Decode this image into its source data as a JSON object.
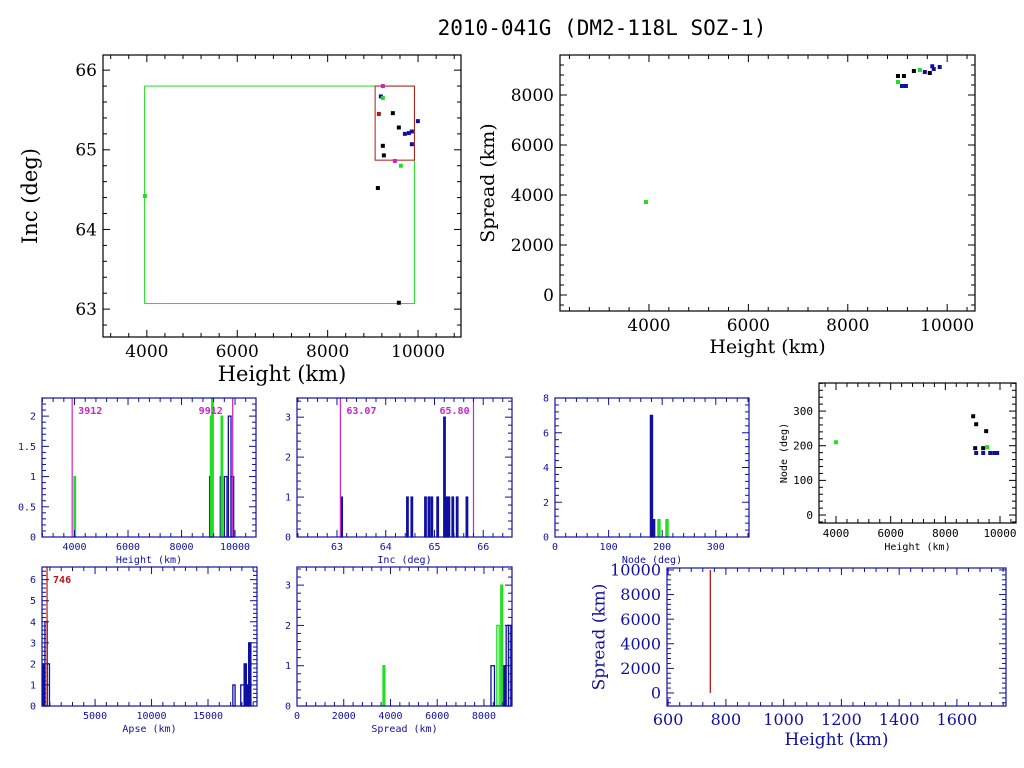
{
  "title": "2010-041G (DM2-118L SOZ-1)",
  "colors": {
    "black": "#000000",
    "blue": "#1010a0",
    "green": "#22dd22",
    "red": "#b01818",
    "magenta": "#cc22cc"
  },
  "chart_data": [
    {
      "id": "inc-height",
      "type": "scatter",
      "xlabel": "Height (km)",
      "ylabel": "Inc (deg)",
      "xlim": [
        3030,
        10950
      ],
      "ylim": [
        62.65,
        66.19
      ],
      "xticks": [
        4000,
        6000,
        8000,
        10000
      ],
      "yticks": [
        63,
        64,
        65,
        66
      ],
      "axis_color": "black",
      "rects": [
        {
          "x": [
            3950,
            9920
          ],
          "y": [
            63.07,
            65.8
          ],
          "color": "green"
        },
        {
          "x": [
            9050,
            9920
          ],
          "y": [
            64.87,
            65.8
          ],
          "color": "red"
        }
      ],
      "points": [
        [
          9221,
          65.8,
          "magenta"
        ],
        [
          9177,
          65.67,
          "blue"
        ],
        [
          9221,
          65.65,
          "green"
        ],
        [
          9133,
          65.45,
          "red"
        ],
        [
          9442,
          65.46,
          "black"
        ],
        [
          9575,
          65.28,
          "black"
        ],
        [
          9708,
          65.2,
          "blue"
        ],
        [
          9796,
          65.21,
          "blue"
        ],
        [
          9863,
          65.23,
          "blue"
        ],
        [
          9863,
          65.07,
          "blue"
        ],
        [
          9996,
          65.36,
          "blue"
        ],
        [
          9221,
          65.05,
          "black"
        ],
        [
          9243,
          64.93,
          "black"
        ],
        [
          9487,
          64.86,
          "magenta"
        ],
        [
          9619,
          64.8,
          "green"
        ],
        [
          9111,
          64.52,
          "black"
        ],
        [
          9575,
          63.08,
          "black"
        ],
        [
          3956,
          64.42,
          "green"
        ]
      ]
    },
    {
      "id": "spread-height",
      "type": "scatter",
      "xlabel": "Height (km)",
      "ylabel": "Spread (km)",
      "xlim": [
        2210,
        10560
      ],
      "ylim": [
        -640,
        9600
      ],
      "xticks": [
        4000,
        6000,
        8000,
        10000
      ],
      "yticks": [
        0,
        2000,
        4000,
        6000,
        8000
      ],
      "axis_color": "black",
      "points": [
        [
          3940,
          3720,
          "green"
        ],
        [
          9010,
          8760,
          "black"
        ],
        [
          9130,
          8760,
          "black"
        ],
        [
          9010,
          8520,
          "green"
        ],
        [
          9090,
          8360,
          "blue"
        ],
        [
          9170,
          8360,
          "blue"
        ],
        [
          9330,
          8960,
          "black"
        ],
        [
          9450,
          9000,
          "green"
        ],
        [
          9550,
          8920,
          "blue"
        ],
        [
          9650,
          8880,
          "black"
        ],
        [
          9730,
          9040,
          "blue"
        ],
        [
          9850,
          9120,
          "blue"
        ],
        [
          9700,
          9150,
          "blue"
        ]
      ]
    },
    {
      "id": "hist-height",
      "type": "bar",
      "xlabel": "Height (km)",
      "ylabel": "",
      "xlim": [
        2784,
        10784
      ],
      "ylim": [
        0,
        2.3
      ],
      "xticks": [
        4000,
        6000,
        8000,
        10000
      ],
      "yticks": [
        0,
        0.5,
        1,
        1.5,
        2
      ],
      "axis_color": "blue",
      "vlines": [
        {
          "x": 3912,
          "label": "3912",
          "color": "magenta"
        },
        {
          "x": 9912,
          "label": "9912",
          "color": "magenta"
        }
      ],
      "bars": [
        [
          3980,
          4030,
          1,
          "green",
          1
        ],
        [
          9050,
          9150,
          1,
          "blue",
          0
        ],
        [
          9080,
          9130,
          2,
          "green",
          1
        ],
        [
          9130,
          9170,
          2.3,
          "green",
          1
        ],
        [
          9450,
          9500,
          1,
          "blue",
          0
        ],
        [
          9480,
          9530,
          2,
          "green",
          1
        ],
        [
          9600,
          9700,
          1,
          "blue",
          0
        ],
        [
          9750,
          9850,
          2,
          "blue",
          0
        ],
        [
          9850,
          9950,
          1,
          "blue",
          0
        ]
      ]
    },
    {
      "id": "hist-inc",
      "type": "bar",
      "xlabel": "Inc (deg)",
      "ylabel": "",
      "xlim": [
        62.18,
        66.59
      ],
      "ylim": [
        0,
        3.48
      ],
      "xticks": [
        63,
        64,
        65,
        66
      ],
      "yticks": [
        0,
        1,
        2,
        3
      ],
      "axis_color": "blue",
      "vlines": [
        {
          "x": 63.07,
          "label": "63.07",
          "color": "magenta"
        },
        {
          "x": 65.8,
          "label": "65.80",
          "color": "magenta"
        }
      ],
      "bars": [
        [
          63.08,
          63.1,
          1,
          "blue",
          1
        ],
        [
          64.43,
          64.46,
          1,
          "blue",
          1
        ],
        [
          64.52,
          64.54,
          1,
          "blue",
          1
        ],
        [
          64.8,
          64.82,
          1,
          "blue",
          1
        ],
        [
          64.87,
          64.9,
          1,
          "blue",
          1
        ],
        [
          64.93,
          64.95,
          1,
          "blue",
          1
        ],
        [
          65.05,
          65.08,
          1,
          "blue",
          1
        ],
        [
          65.19,
          65.22,
          3,
          "blue",
          1
        ],
        [
          65.23,
          65.26,
          1,
          "blue",
          1
        ],
        [
          65.28,
          65.3,
          1,
          "blue",
          1
        ],
        [
          65.36,
          65.39,
          1,
          "blue",
          1
        ],
        [
          65.45,
          65.48,
          1,
          "blue",
          1
        ],
        [
          65.65,
          65.68,
          1,
          "blue",
          1
        ]
      ]
    },
    {
      "id": "hist-node",
      "type": "bar",
      "xlabel": "Node (deg)",
      "ylabel": "",
      "xlim": [
        0,
        362
      ],
      "ylim": [
        0,
        8
      ],
      "xticks": [
        0,
        100,
        200,
        300
      ],
      "yticks": [
        0,
        2,
        4,
        6,
        8
      ],
      "axis_color": "blue",
      "bars": [
        [
          178,
          182,
          7,
          "blue",
          1
        ],
        [
          183,
          186,
          1,
          "blue",
          1
        ],
        [
          192,
          196,
          1,
          "green",
          1
        ],
        [
          207,
          211,
          1,
          "green",
          1
        ]
      ]
    },
    {
      "id": "node-height",
      "type": "scatter",
      "xlabel": "Height (km)",
      "ylabel": "Node (deg)",
      "xlim": [
        3377,
        10585
      ],
      "ylim": [
        -23,
        381
      ],
      "xticks": [
        4000,
        6000,
        8000,
        10000
      ],
      "yticks": [
        0,
        100,
        200,
        300
      ],
      "axis_color": "black",
      "points": [
        [
          9018,
          285,
          "black"
        ],
        [
          9128,
          262,
          "black"
        ],
        [
          9494,
          242,
          "black"
        ],
        [
          4000,
          210,
          "green"
        ],
        [
          9092,
          193,
          "black"
        ],
        [
          9385,
          193,
          "black"
        ],
        [
          9531,
          196,
          "green"
        ],
        [
          9128,
          179,
          "blue"
        ],
        [
          9385,
          179,
          "blue"
        ],
        [
          9641,
          179,
          "blue"
        ],
        [
          9787,
          179,
          "blue"
        ],
        [
          9897,
          179,
          "blue"
        ]
      ]
    },
    {
      "id": "hist-apse",
      "type": "bar",
      "xlabel": "Apse (km)",
      "ylabel": "",
      "xlim": [
        300,
        19340
      ],
      "ylim": [
        0,
        6.6
      ],
      "xticks": [
        5000,
        10000,
        15000
      ],
      "yticks": [
        0,
        1,
        2,
        3,
        4,
        5,
        6
      ],
      "axis_color": "blue",
      "vlines": [
        {
          "x": 746,
          "label": "746",
          "color": "red"
        }
      ],
      "bars": [
        [
          320,
          560,
          2,
          "blue",
          1
        ],
        [
          560,
          760,
          4,
          "blue",
          0
        ],
        [
          760,
          960,
          2,
          "blue",
          0
        ],
        [
          17200,
          17400,
          1,
          "blue",
          0
        ],
        [
          17900,
          18200,
          1,
          "blue",
          0
        ],
        [
          18200,
          18400,
          2,
          "blue",
          1
        ],
        [
          18400,
          18600,
          1,
          "blue",
          1
        ],
        [
          18600,
          18800,
          3,
          "blue",
          1
        ]
      ]
    },
    {
      "id": "hist-spread",
      "type": "bar",
      "xlabel": "Spread (km)",
      "ylabel": "",
      "xlim": [
        0,
        9200
      ],
      "ylim": [
        0,
        3.45
      ],
      "xticks": [
        0,
        2000,
        4000,
        6000,
        8000
      ],
      "yticks": [
        0,
        1,
        2,
        3
      ],
      "axis_color": "blue",
      "bars": [
        [
          3680,
          3760,
          1,
          "green",
          1
        ],
        [
          8300,
          8450,
          1,
          "blue",
          0
        ],
        [
          8550,
          8650,
          2,
          "green",
          0
        ],
        [
          8720,
          8800,
          3,
          "green",
          1
        ],
        [
          8850,
          8900,
          1,
          "blue",
          1
        ],
        [
          8950,
          9050,
          2,
          "blue",
          0
        ],
        [
          9050,
          9150,
          2,
          "blue",
          0
        ]
      ]
    },
    {
      "id": "spread-height-low",
      "type": "line",
      "xlabel": "Height (km)",
      "ylabel": "Spread (km)",
      "xlim": [
        596,
        1770
      ],
      "ylim": [
        -1060,
        10160
      ],
      "xticks": [
        600,
        800,
        1000,
        1200,
        1400,
        1600
      ],
      "yticks": [
        0,
        2000,
        4000,
        6000,
        8000,
        10000
      ],
      "axis_color": "blue",
      "segments": [
        {
          "x": [
            746,
            746
          ],
          "y": [
            0,
            10000
          ],
          "color": "red"
        }
      ]
    }
  ]
}
